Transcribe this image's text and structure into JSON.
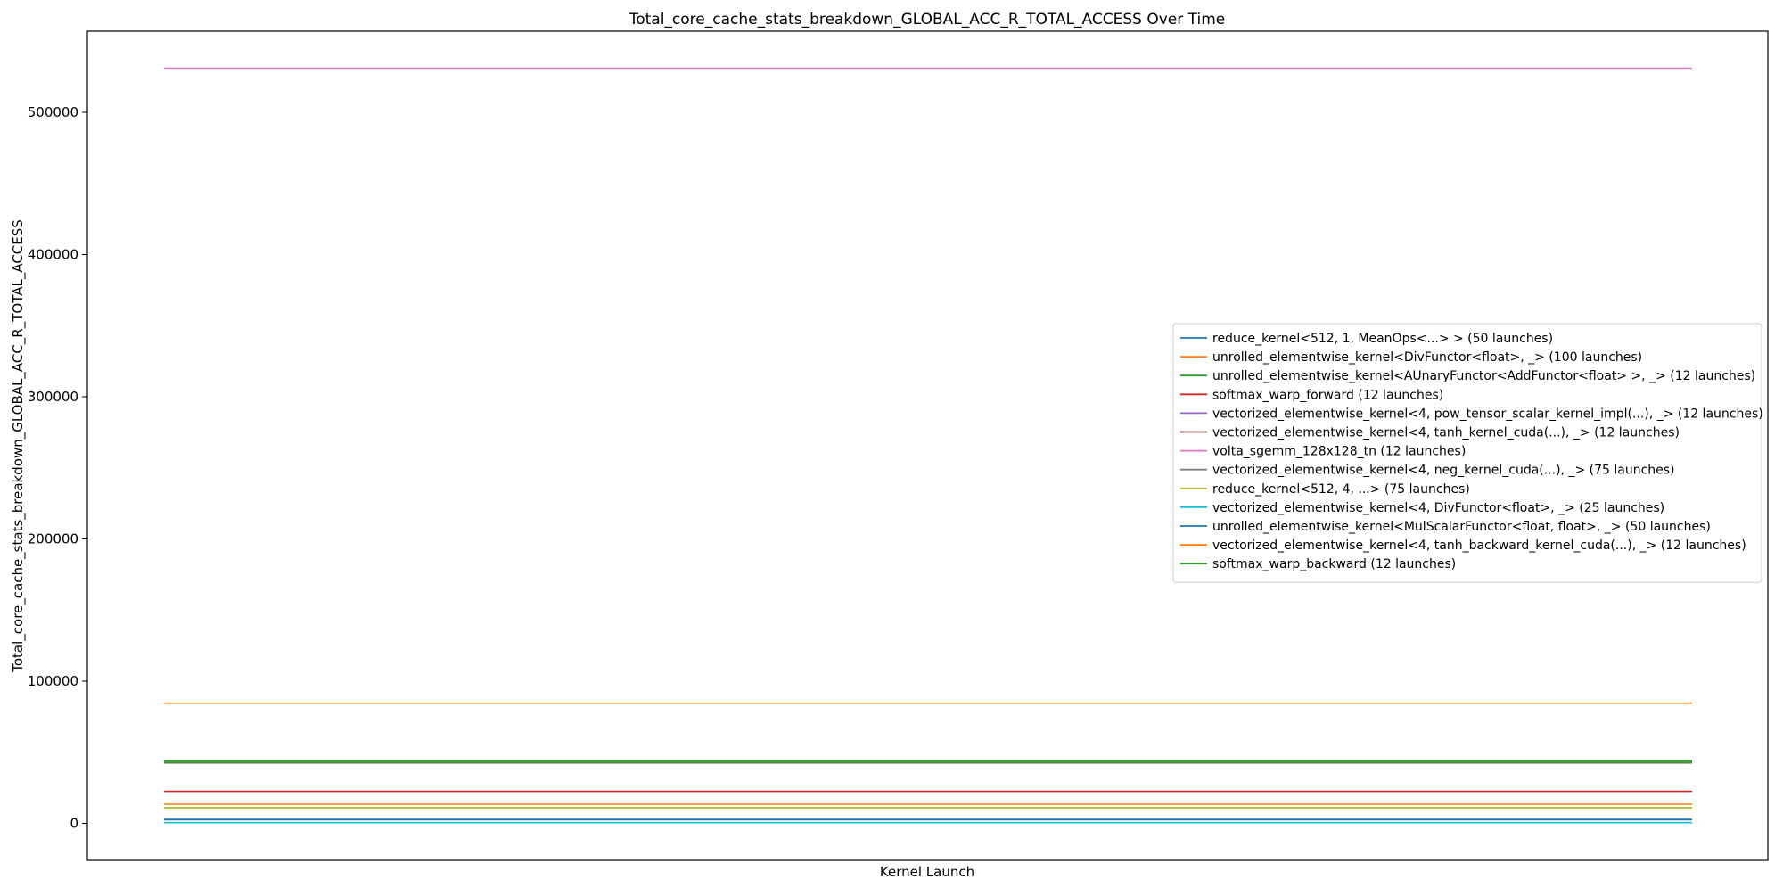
{
  "chart_data": {
    "type": "line",
    "title": "Total_core_cache_stats_breakdown_GLOBAL_ACC_R_TOTAL_ACCESS Over Time",
    "xlabel": "Kernel Launch",
    "ylabel": "Total_core_cache_stats_breakdown_GLOBAL_ACC_R_TOTAL_ACCESS",
    "ylim": [
      -26000,
      557000
    ],
    "yticks": [
      0,
      100000,
      200000,
      300000,
      400000,
      500000
    ],
    "x_ticks_shown": false,
    "grid": false,
    "legend_position": "center-right",
    "series": [
      {
        "name": "reduce_kernel<512, 1, MeanOps<...> > (50 launches)",
        "color": "#1f77b4",
        "values": [
          2500,
          2500
        ]
      },
      {
        "name": "unrolled_elementwise_kernel<DivFunctor<float>, _> (100 launches)",
        "color": "#ff7f0e",
        "values": [
          84500,
          84500
        ]
      },
      {
        "name": "unrolled_elementwise_kernel<AUnaryFunctor<AddFunctor<float> >, _> (12 launches)",
        "color": "#2ca02c",
        "values": [
          44000,
          44000
        ]
      },
      {
        "name": "softmax_warp_forward (12 launches)",
        "color": "#d62728",
        "values": [
          22500,
          22500
        ]
      },
      {
        "name": "vectorized_elementwise_kernel<4, pow_tensor_scalar_kernel_impl(...), _> (12 launches)",
        "color": "#9467bd",
        "values": [
          42500,
          42500
        ]
      },
      {
        "name": "vectorized_elementwise_kernel<4, tanh_kernel_cuda(...), _> (12 launches)",
        "color": "#8c564b",
        "values": [
          42500,
          42500
        ]
      },
      {
        "name": "volta_sgemm_128x128_tn (12 launches)",
        "color": "#e377c2",
        "values": [
          531000,
          531000
        ]
      },
      {
        "name": "vectorized_elementwise_kernel<4, neg_kernel_cuda(...), _> (75 launches)",
        "color": "#7f7f7f",
        "values": [
          11000,
          11000
        ]
      },
      {
        "name": "reduce_kernel<512, 4, ...> (75 launches)",
        "color": "#bcbd22",
        "values": [
          11000,
          11000
        ]
      },
      {
        "name": "vectorized_elementwise_kernel<4, DivFunctor<float>, _> (25 launches)",
        "color": "#17becf",
        "values": [
          500,
          500
        ]
      },
      {
        "name": "unrolled_elementwise_kernel<MulScalarFunctor<float, float>, _> (50 launches)",
        "color": "#1f77b4",
        "values": [
          2800,
          2800
        ]
      },
      {
        "name": "vectorized_elementwise_kernel<4, tanh_backward_kernel_cuda(...), _> (12 launches)",
        "color": "#ff7f0e",
        "values": [
          13500,
          13500
        ]
      },
      {
        "name": "softmax_warp_backward (12 launches)",
        "color": "#2ca02c",
        "values": [
          43000,
          43000
        ]
      }
    ]
  }
}
